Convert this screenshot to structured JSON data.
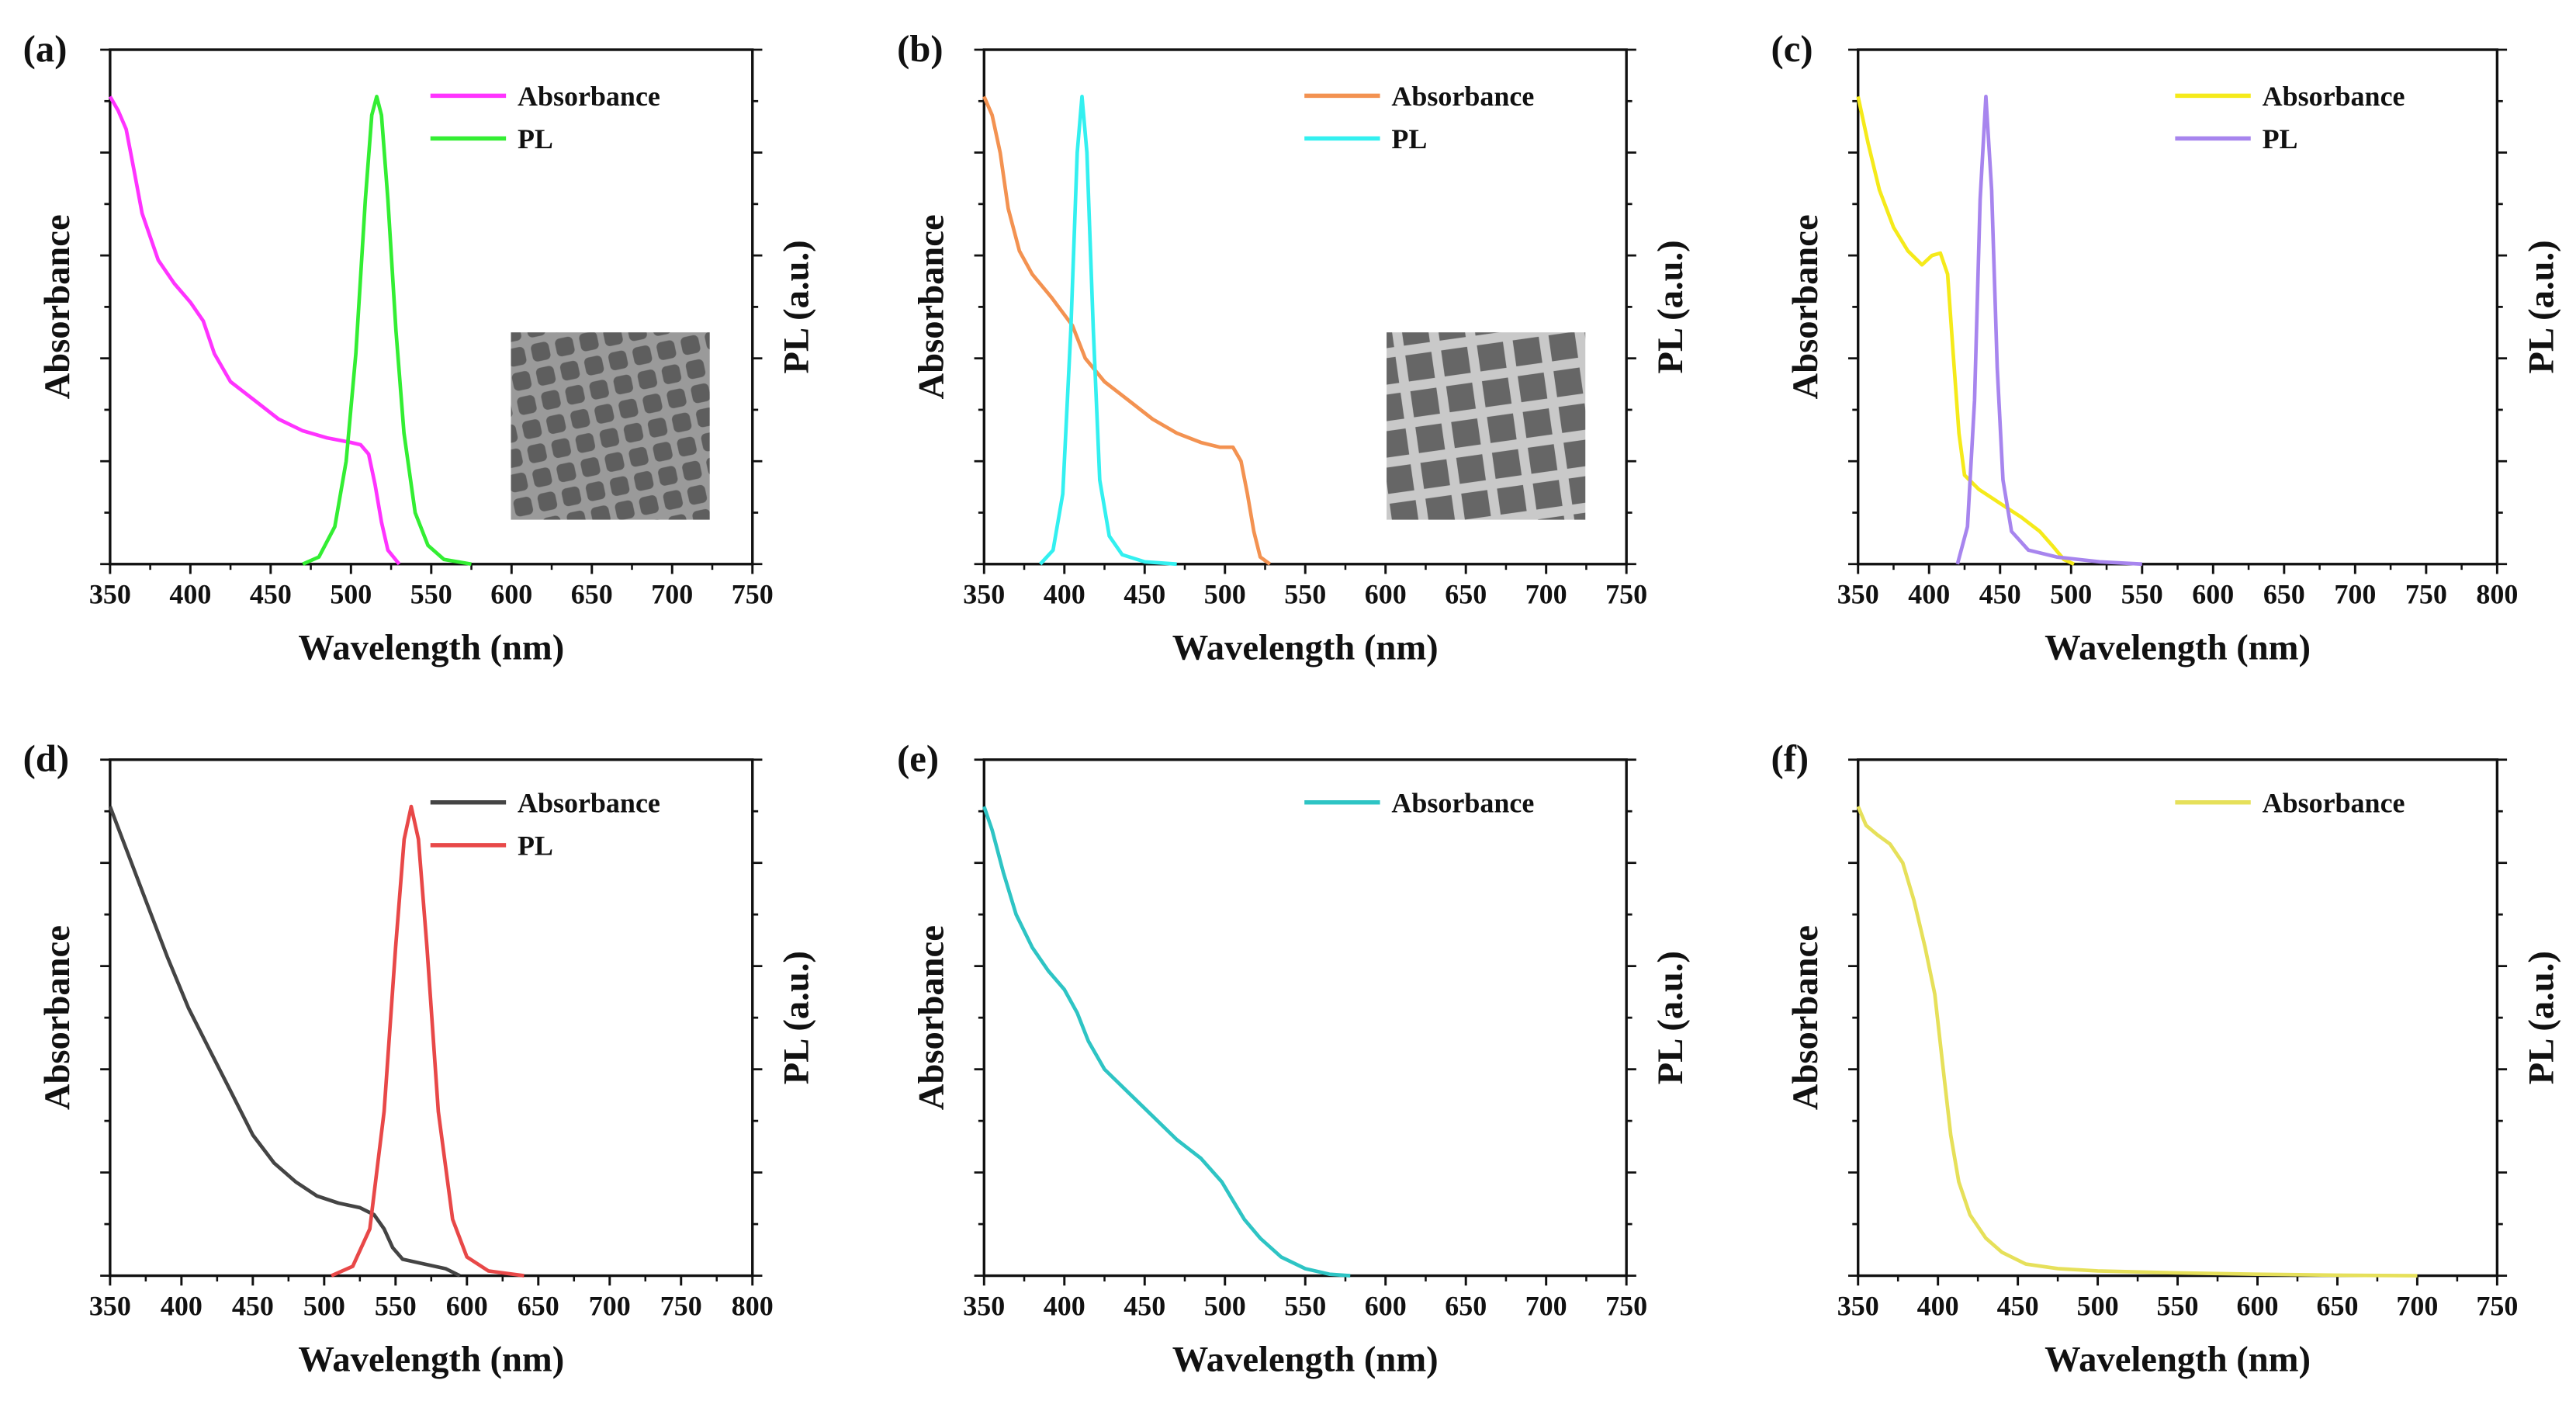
{
  "chart_data": [
    {
      "panel": "(a)",
      "type": "line",
      "xlabel": "Wavelength (nm)",
      "ylabel": "Absorbance",
      "y2label": "PL (a.u.)",
      "xlim": [
        350,
        750
      ],
      "xticks": [
        350,
        400,
        450,
        500,
        550,
        600,
        650,
        700,
        750
      ],
      "ylim": [
        0,
        1.1
      ],
      "grid": false,
      "legend": "top-right",
      "inset": "TEM image",
      "series": [
        {
          "name": "Absorbance",
          "color": "#ff33ff",
          "points": [
            [
              350,
              1.0
            ],
            [
              355,
              0.97
            ],
            [
              360,
              0.93
            ],
            [
              365,
              0.84
            ],
            [
              370,
              0.75
            ],
            [
              380,
              0.65
            ],
            [
              390,
              0.6
            ],
            [
              400,
              0.56
            ],
            [
              408,
              0.52
            ],
            [
              415,
              0.45
            ],
            [
              425,
              0.39
            ],
            [
              440,
              0.35
            ],
            [
              455,
              0.31
            ],
            [
              470,
              0.285
            ],
            [
              485,
              0.27
            ],
            [
              500,
              0.26
            ],
            [
              506,
              0.255
            ],
            [
              511,
              0.235
            ],
            [
              515,
              0.17
            ],
            [
              519,
              0.09
            ],
            [
              523,
              0.03
            ],
            [
              530,
              0.0
            ]
          ]
        },
        {
          "name": "PL",
          "color": "#33ee33",
          "points": [
            [
              470,
              0.0
            ],
            [
              480,
              0.015
            ],
            [
              490,
              0.08
            ],
            [
              497,
              0.22
            ],
            [
              503,
              0.45
            ],
            [
              509,
              0.78
            ],
            [
              513,
              0.96
            ],
            [
              516,
              1.0
            ],
            [
              519,
              0.96
            ],
            [
              523,
              0.78
            ],
            [
              528,
              0.5
            ],
            [
              533,
              0.28
            ],
            [
              540,
              0.11
            ],
            [
              548,
              0.04
            ],
            [
              558,
              0.01
            ],
            [
              575,
              0.0
            ]
          ]
        }
      ]
    },
    {
      "panel": "(b)",
      "type": "line",
      "xlabel": "Wavelength (nm)",
      "ylabel": "Absorbance",
      "y2label": "PL (a.u.)",
      "xlim": [
        350,
        750
      ],
      "xticks": [
        350,
        400,
        450,
        500,
        550,
        600,
        650,
        700,
        750
      ],
      "ylim": [
        0,
        1.1
      ],
      "grid": false,
      "legend": "top-right",
      "inset": "TEM image",
      "series": [
        {
          "name": "Absorbance",
          "color": "#f39251",
          "points": [
            [
              350,
              1.0
            ],
            [
              355,
              0.96
            ],
            [
              360,
              0.88
            ],
            [
              365,
              0.76
            ],
            [
              372,
              0.67
            ],
            [
              380,
              0.62
            ],
            [
              392,
              0.57
            ],
            [
              405,
              0.51
            ],
            [
              413,
              0.44
            ],
            [
              425,
              0.39
            ],
            [
              440,
              0.35
            ],
            [
              455,
              0.31
            ],
            [
              470,
              0.28
            ],
            [
              485,
              0.26
            ],
            [
              497,
              0.25
            ],
            [
              505,
              0.25
            ],
            [
              510,
              0.22
            ],
            [
              514,
              0.15
            ],
            [
              518,
              0.07
            ],
            [
              522,
              0.015
            ],
            [
              528,
              0.0
            ]
          ]
        },
        {
          "name": "PL",
          "color": "#33f0f0",
          "points": [
            [
              385,
              0.0
            ],
            [
              393,
              0.03
            ],
            [
              399,
              0.15
            ],
            [
              404,
              0.5
            ],
            [
              408,
              0.88
            ],
            [
              411,
              1.0
            ],
            [
              414,
              0.88
            ],
            [
              418,
              0.5
            ],
            [
              422,
              0.18
            ],
            [
              428,
              0.06
            ],
            [
              436,
              0.02
            ],
            [
              450,
              0.005
            ],
            [
              470,
              0.0
            ]
          ]
        }
      ]
    },
    {
      "panel": "(c)",
      "type": "line",
      "xlabel": "Wavelength (nm)",
      "ylabel": "Absorbance",
      "y2label": "PL (a.u.)",
      "xlim": [
        350,
        800
      ],
      "xticks": [
        350,
        400,
        450,
        500,
        550,
        600,
        650,
        700,
        750,
        800
      ],
      "ylim": [
        0,
        1.1
      ],
      "grid": false,
      "legend": "top-right",
      "series": [
        {
          "name": "Absorbance",
          "color": "#f5ea1a",
          "points": [
            [
              350,
              1.0
            ],
            [
              357,
              0.9
            ],
            [
              365,
              0.8
            ],
            [
              375,
              0.72
            ],
            [
              385,
              0.67
            ],
            [
              395,
              0.64
            ],
            [
              402,
              0.66
            ],
            [
              408,
              0.665
            ],
            [
              413,
              0.62
            ],
            [
              417,
              0.45
            ],
            [
              421,
              0.28
            ],
            [
              425,
              0.19
            ],
            [
              435,
              0.16
            ],
            [
              450,
              0.13
            ],
            [
              465,
              0.1
            ],
            [
              478,
              0.07
            ],
            [
              488,
              0.035
            ],
            [
              495,
              0.01
            ],
            [
              502,
              0.0
            ]
          ]
        },
        {
          "name": "PL",
          "color": "#a785ee",
          "points": [
            [
              420,
              0.0
            ],
            [
              427,
              0.08
            ],
            [
              432,
              0.35
            ],
            [
              436,
              0.78
            ],
            [
              440,
              1.0
            ],
            [
              444,
              0.8
            ],
            [
              448,
              0.42
            ],
            [
              452,
              0.18
            ],
            [
              458,
              0.07
            ],
            [
              470,
              0.03
            ],
            [
              490,
              0.015
            ],
            [
              520,
              0.005
            ],
            [
              550,
              0.0
            ]
          ]
        }
      ]
    },
    {
      "panel": "(d)",
      "type": "line",
      "xlabel": "Wavelength (nm)",
      "ylabel": "Absorbance",
      "y2label": "PL (a.u.)",
      "xlim": [
        350,
        800
      ],
      "xticks": [
        350,
        400,
        450,
        500,
        550,
        600,
        650,
        700,
        750,
        800
      ],
      "ylim": [
        0,
        1.1
      ],
      "grid": false,
      "legend": "top-right",
      "series": [
        {
          "name": "Absorbance",
          "color": "#444444",
          "points": [
            [
              350,
              1.0
            ],
            [
              360,
              0.92
            ],
            [
              375,
              0.8
            ],
            [
              390,
              0.68
            ],
            [
              405,
              0.57
            ],
            [
              420,
              0.48
            ],
            [
              435,
              0.39
            ],
            [
              450,
              0.3
            ],
            [
              465,
              0.24
            ],
            [
              480,
              0.2
            ],
            [
              495,
              0.17
            ],
            [
              510,
              0.155
            ],
            [
              525,
              0.145
            ],
            [
              535,
              0.13
            ],
            [
              542,
              0.1
            ],
            [
              548,
              0.06
            ],
            [
              555,
              0.035
            ],
            [
              570,
              0.025
            ],
            [
              585,
              0.015
            ],
            [
              595,
              0.0
            ]
          ]
        },
        {
          "name": "PL",
          "color": "#e84848",
          "points": [
            [
              505,
              0.0
            ],
            [
              520,
              0.02
            ],
            [
              532,
              0.1
            ],
            [
              542,
              0.35
            ],
            [
              550,
              0.7
            ],
            [
              556,
              0.93
            ],
            [
              561,
              1.0
            ],
            [
              566,
              0.93
            ],
            [
              572,
              0.7
            ],
            [
              580,
              0.35
            ],
            [
              590,
              0.12
            ],
            [
              600,
              0.04
            ],
            [
              615,
              0.01
            ],
            [
              640,
              0.0
            ]
          ]
        }
      ]
    },
    {
      "panel": "(e)",
      "type": "line",
      "xlabel": "Wavelength (nm)",
      "ylabel": "Absorbance",
      "y2label": "PL (a.u.)",
      "xlim": [
        350,
        750
      ],
      "xticks": [
        350,
        400,
        450,
        500,
        550,
        600,
        650,
        700,
        750
      ],
      "ylim": [
        0,
        1.1
      ],
      "grid": false,
      "legend": "top-right",
      "series": [
        {
          "name": "Absorbance",
          "color": "#2ec4c4",
          "points": [
            [
              350,
              1.0
            ],
            [
              355,
              0.95
            ],
            [
              362,
              0.86
            ],
            [
              370,
              0.77
            ],
            [
              380,
              0.7
            ],
            [
              390,
              0.65
            ],
            [
              400,
              0.61
            ],
            [
              408,
              0.56
            ],
            [
              415,
              0.5
            ],
            [
              425,
              0.44
            ],
            [
              440,
              0.39
            ],
            [
              455,
              0.34
            ],
            [
              470,
              0.29
            ],
            [
              485,
              0.25
            ],
            [
              498,
              0.2
            ],
            [
              505,
              0.16
            ],
            [
              512,
              0.12
            ],
            [
              522,
              0.08
            ],
            [
              535,
              0.04
            ],
            [
              550,
              0.015
            ],
            [
              565,
              0.003
            ],
            [
              578,
              0.0
            ]
          ]
        }
      ]
    },
    {
      "panel": "(f)",
      "type": "line",
      "xlabel": "Wavelength (nm)",
      "ylabel": "Absorbance",
      "y2label": "PL (a.u.)",
      "xlim": [
        350,
        750
      ],
      "xticks": [
        350,
        400,
        450,
        500,
        550,
        600,
        650,
        700,
        750
      ],
      "ylim": [
        0,
        1.1
      ],
      "grid": false,
      "legend": "top-right",
      "series": [
        {
          "name": "Absorbance",
          "color": "#e6e05a",
          "points": [
            [
              350,
              1.0
            ],
            [
              355,
              0.96
            ],
            [
              362,
              0.94
            ],
            [
              370,
              0.92
            ],
            [
              378,
              0.88
            ],
            [
              385,
              0.8
            ],
            [
              392,
              0.7
            ],
            [
              398,
              0.6
            ],
            [
              403,
              0.45
            ],
            [
              408,
              0.3
            ],
            [
              413,
              0.2
            ],
            [
              420,
              0.13
            ],
            [
              430,
              0.08
            ],
            [
              440,
              0.05
            ],
            [
              455,
              0.025
            ],
            [
              475,
              0.015
            ],
            [
              500,
              0.01
            ],
            [
              550,
              0.006
            ],
            [
              600,
              0.003
            ],
            [
              650,
              0.001
            ],
            [
              700,
              0.0
            ]
          ]
        }
      ]
    }
  ]
}
